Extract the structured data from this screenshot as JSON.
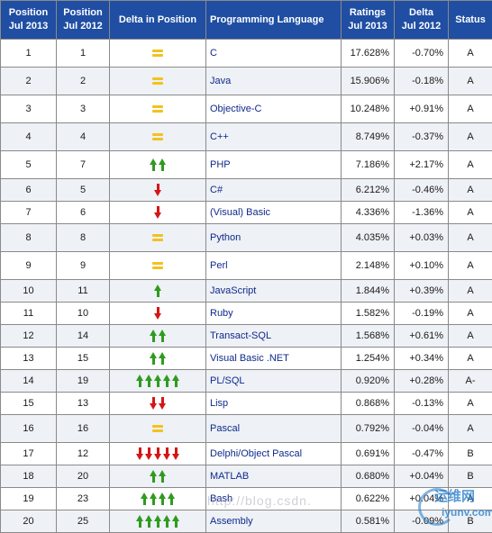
{
  "headers": {
    "pos2013": [
      "Position",
      "Jul 2013"
    ],
    "pos2012": [
      "Position",
      "Jul 2012"
    ],
    "delta_pos": "Delta in Position",
    "language": "Programming Language",
    "ratings": [
      "Ratings",
      "Jul 2013"
    ],
    "delta": [
      "Delta",
      "Jul 2012"
    ],
    "status": "Status"
  },
  "rows": [
    {
      "pos2013": "1",
      "pos2012": "1",
      "delta_icon": "equal",
      "arrows": 1,
      "lang": "C",
      "rating": "17.628%",
      "delta": "-0.70%",
      "status": "A"
    },
    {
      "pos2013": "2",
      "pos2012": "2",
      "delta_icon": "equal",
      "arrows": 1,
      "lang": "Java",
      "rating": "15.906%",
      "delta": "-0.18%",
      "status": "A"
    },
    {
      "pos2013": "3",
      "pos2012": "3",
      "delta_icon": "equal",
      "arrows": 1,
      "lang": "Objective-C",
      "rating": "10.248%",
      "delta": "+0.91%",
      "status": "A"
    },
    {
      "pos2013": "4",
      "pos2012": "4",
      "delta_icon": "equal",
      "arrows": 1,
      "lang": "C++",
      "rating": "8.749%",
      "delta": "-0.37%",
      "status": "A"
    },
    {
      "pos2013": "5",
      "pos2012": "7",
      "delta_icon": "up",
      "arrows": 2,
      "lang": "PHP",
      "rating": "7.186%",
      "delta": "+2.17%",
      "status": "A"
    },
    {
      "pos2013": "6",
      "pos2012": "5",
      "delta_icon": "down",
      "arrows": 1,
      "lang": "C#",
      "rating": "6.212%",
      "delta": "-0.46%",
      "status": "A"
    },
    {
      "pos2013": "7",
      "pos2012": "6",
      "delta_icon": "down",
      "arrows": 1,
      "lang": "(Visual) Basic",
      "rating": "4.336%",
      "delta": "-1.36%",
      "status": "A"
    },
    {
      "pos2013": "8",
      "pos2012": "8",
      "delta_icon": "equal",
      "arrows": 1,
      "lang": "Python",
      "rating": "4.035%",
      "delta": "+0.03%",
      "status": "A"
    },
    {
      "pos2013": "9",
      "pos2012": "9",
      "delta_icon": "equal",
      "arrows": 1,
      "lang": "Perl",
      "rating": "2.148%",
      "delta": "+0.10%",
      "status": "A"
    },
    {
      "pos2013": "10",
      "pos2012": "11",
      "delta_icon": "up",
      "arrows": 1,
      "lang": "JavaScript",
      "rating": "1.844%",
      "delta": "+0.39%",
      "status": "A"
    },
    {
      "pos2013": "11",
      "pos2012": "10",
      "delta_icon": "down",
      "arrows": 1,
      "lang": "Ruby",
      "rating": "1.582%",
      "delta": "-0.19%",
      "status": "A"
    },
    {
      "pos2013": "12",
      "pos2012": "14",
      "delta_icon": "up",
      "arrows": 2,
      "lang": "Transact-SQL",
      "rating": "1.568%",
      "delta": "+0.61%",
      "status": "A"
    },
    {
      "pos2013": "13",
      "pos2012": "15",
      "delta_icon": "up",
      "arrows": 2,
      "lang": "Visual Basic .NET",
      "rating": "1.254%",
      "delta": "+0.34%",
      "status": "A"
    },
    {
      "pos2013": "14",
      "pos2012": "19",
      "delta_icon": "up",
      "arrows": 5,
      "lang": "PL/SQL",
      "rating": "0.920%",
      "delta": "+0.28%",
      "status": "A-"
    },
    {
      "pos2013": "15",
      "pos2012": "13",
      "delta_icon": "down",
      "arrows": 2,
      "lang": "Lisp",
      "rating": "0.868%",
      "delta": "-0.13%",
      "status": "A"
    },
    {
      "pos2013": "16",
      "pos2012": "16",
      "delta_icon": "equal",
      "arrows": 1,
      "lang": "Pascal",
      "rating": "0.792%",
      "delta": "-0.04%",
      "status": "A"
    },
    {
      "pos2013": "17",
      "pos2012": "12",
      "delta_icon": "down",
      "arrows": 5,
      "lang": "Delphi/Object Pascal",
      "rating": "0.691%",
      "delta": "-0.47%",
      "status": "B"
    },
    {
      "pos2013": "18",
      "pos2012": "20",
      "delta_icon": "up",
      "arrows": 2,
      "lang": "MATLAB",
      "rating": "0.680%",
      "delta": "+0.04%",
      "status": "B"
    },
    {
      "pos2013": "19",
      "pos2012": "23",
      "delta_icon": "up",
      "arrows": 4,
      "lang": "Bash",
      "rating": "0.622%",
      "delta": "+0.04%",
      "status": "A"
    },
    {
      "pos2013": "20",
      "pos2012": "25",
      "delta_icon": "up",
      "arrows": 5,
      "lang": "Assembly",
      "rating": "0.581%",
      "delta": "-0.09%",
      "status": "B"
    }
  ],
  "watermarks": {
    "blog": "http://blog.csdn.",
    "site_big": "运维网",
    "site_small": "iyunv.com"
  },
  "colors": {
    "header_bg": "#1f4ea3",
    "header_text": "#ffffff",
    "link_text": "#0f2a8a",
    "equal_icon": "#f2c21f",
    "up_arrow": "#2f9b1f",
    "down_arrow": "#d41616",
    "row_alt": "#eef1f6"
  }
}
